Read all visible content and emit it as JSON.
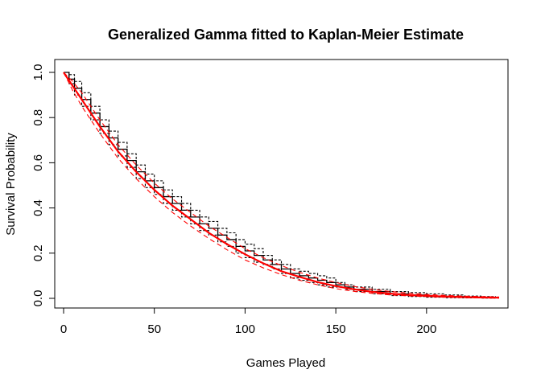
{
  "chart_data": {
    "type": "line",
    "title": "Generalized Gamma fitted to Kaplan-Meier Estimate",
    "xlabel": "Games Played",
    "ylabel": "Survival Probability",
    "xlim": [
      0,
      240
    ],
    "ylim": [
      0,
      1.0
    ],
    "xticks": [
      0,
      50,
      100,
      150,
      200
    ],
    "yticks": [
      "0.0",
      "0.2",
      "0.4",
      "0.6",
      "0.8",
      "1.0"
    ],
    "grid": false,
    "legend": "none",
    "colors": {
      "km": "#000000",
      "fit": "#ff0000"
    },
    "series": [
      {
        "style": "km-step",
        "x": [
          0,
          3,
          6,
          10,
          15,
          20,
          25,
          30,
          35,
          40,
          45,
          50,
          55,
          60,
          65,
          70,
          75,
          80,
          85,
          90,
          95,
          100,
          105,
          110,
          115,
          120,
          125,
          130,
          135,
          140,
          145,
          150,
          155,
          160,
          170,
          180,
          190,
          200,
          210,
          220,
          230,
          238
        ],
        "y": [
          1.0,
          0.97,
          0.93,
          0.88,
          0.82,
          0.76,
          0.71,
          0.66,
          0.61,
          0.56,
          0.52,
          0.49,
          0.45,
          0.42,
          0.39,
          0.36,
          0.33,
          0.31,
          0.28,
          0.26,
          0.23,
          0.21,
          0.19,
          0.17,
          0.15,
          0.13,
          0.11,
          0.1,
          0.09,
          0.08,
          0.07,
          0.06,
          0.05,
          0.04,
          0.03,
          0.02,
          0.015,
          0.01,
          0.008,
          0.005,
          0.003,
          0.0
        ]
      },
      {
        "style": "km-upper",
        "x": [
          0,
          3,
          6,
          10,
          15,
          20,
          25,
          30,
          35,
          40,
          45,
          50,
          55,
          60,
          65,
          70,
          75,
          80,
          85,
          90,
          95,
          100,
          105,
          110,
          115,
          120,
          125,
          130,
          135,
          140,
          145,
          150,
          155,
          160,
          170,
          180,
          190,
          200,
          210,
          220,
          230,
          238
        ],
        "y": [
          1.0,
          0.99,
          0.96,
          0.91,
          0.85,
          0.79,
          0.74,
          0.69,
          0.64,
          0.59,
          0.55,
          0.52,
          0.48,
          0.45,
          0.42,
          0.39,
          0.36,
          0.34,
          0.31,
          0.29,
          0.26,
          0.24,
          0.22,
          0.19,
          0.17,
          0.15,
          0.13,
          0.12,
          0.11,
          0.1,
          0.09,
          0.07,
          0.06,
          0.05,
          0.04,
          0.03,
          0.025,
          0.02,
          0.015,
          0.01,
          0.008,
          0.005
        ]
      },
      {
        "style": "km-lower",
        "x": [
          0,
          3,
          6,
          10,
          15,
          20,
          25,
          30,
          35,
          40,
          45,
          50,
          55,
          60,
          65,
          70,
          75,
          80,
          85,
          90,
          95,
          100,
          105,
          110,
          115,
          120,
          125,
          130,
          135,
          140,
          145,
          150,
          155,
          160,
          170,
          180,
          190,
          200,
          210,
          220,
          230,
          238
        ],
        "y": [
          1.0,
          0.95,
          0.9,
          0.85,
          0.79,
          0.73,
          0.68,
          0.63,
          0.58,
          0.53,
          0.49,
          0.46,
          0.42,
          0.39,
          0.36,
          0.33,
          0.3,
          0.28,
          0.25,
          0.23,
          0.2,
          0.18,
          0.16,
          0.15,
          0.13,
          0.11,
          0.09,
          0.08,
          0.07,
          0.06,
          0.05,
          0.05,
          0.04,
          0.03,
          0.02,
          0.012,
          0.008,
          0.005,
          0.003,
          0.002,
          0.001,
          0.0
        ]
      },
      {
        "style": "fit",
        "x": [
          0,
          5,
          10,
          20,
          30,
          40,
          50,
          60,
          70,
          80,
          90,
          100,
          110,
          120,
          130,
          140,
          150,
          160,
          170,
          180,
          190,
          200,
          210,
          220,
          230,
          240
        ],
        "y": [
          1.0,
          0.94,
          0.88,
          0.76,
          0.65,
          0.56,
          0.48,
          0.41,
          0.35,
          0.29,
          0.24,
          0.195,
          0.155,
          0.12,
          0.095,
          0.072,
          0.054,
          0.04,
          0.029,
          0.021,
          0.015,
          0.011,
          0.008,
          0.006,
          0.004,
          0.003
        ]
      },
      {
        "style": "fit-upper",
        "x": [
          0,
          5,
          10,
          20,
          30,
          40,
          50,
          60,
          70,
          80,
          90,
          100,
          110,
          120,
          130,
          140,
          150,
          160,
          170,
          180,
          190,
          200,
          210,
          220,
          230,
          240
        ],
        "y": [
          1.0,
          0.96,
          0.91,
          0.79,
          0.68,
          0.59,
          0.51,
          0.44,
          0.38,
          0.32,
          0.27,
          0.22,
          0.18,
          0.145,
          0.115,
          0.09,
          0.07,
          0.053,
          0.04,
          0.03,
          0.023,
          0.017,
          0.013,
          0.01,
          0.008,
          0.006
        ]
      },
      {
        "style": "fit-lower",
        "x": [
          0,
          5,
          10,
          20,
          30,
          40,
          50,
          60,
          70,
          80,
          90,
          100,
          110,
          120,
          130,
          140,
          150,
          160,
          170,
          180,
          190,
          200,
          210,
          220,
          230,
          240
        ],
        "y": [
          1.0,
          0.92,
          0.85,
          0.73,
          0.62,
          0.53,
          0.45,
          0.38,
          0.32,
          0.265,
          0.215,
          0.17,
          0.135,
          0.105,
          0.08,
          0.06,
          0.043,
          0.031,
          0.022,
          0.015,
          0.011,
          0.008,
          0.005,
          0.003,
          0.002,
          0.001
        ]
      }
    ]
  }
}
